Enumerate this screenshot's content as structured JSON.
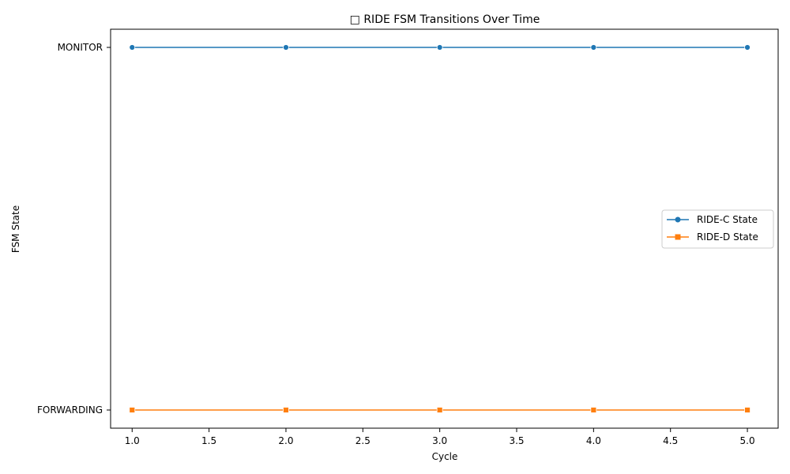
{
  "chart_data": {
    "type": "line",
    "title": "□ RIDE FSM Transitions Over Time",
    "xlabel": "Cycle",
    "ylabel": "FSM State",
    "x": [
      1,
      2,
      3,
      4,
      5
    ],
    "xlim": [
      0.86,
      5.2
    ],
    "x_ticks": [
      "1.0",
      "1.5",
      "2.0",
      "2.5",
      "3.0",
      "3.5",
      "4.0",
      "4.5",
      "5.0"
    ],
    "x_tick_values": [
      1.0,
      1.5,
      2.0,
      2.5,
      3.0,
      3.5,
      4.0,
      4.5,
      5.0
    ],
    "y_categories": [
      "FORWARDING",
      "MONITOR"
    ],
    "grid": false,
    "legend_position": "center-right",
    "series": [
      {
        "name": "RIDE-C State",
        "values": [
          "MONITOR",
          "MONITOR",
          "MONITOR",
          "MONITOR",
          "MONITOR"
        ],
        "color": "#1f77b4",
        "marker": "circle"
      },
      {
        "name": "RIDE-D State",
        "values": [
          "FORWARDING",
          "FORWARDING",
          "FORWARDING",
          "FORWARDING",
          "FORWARDING"
        ],
        "color": "#ff7f0e",
        "marker": "square"
      }
    ]
  }
}
